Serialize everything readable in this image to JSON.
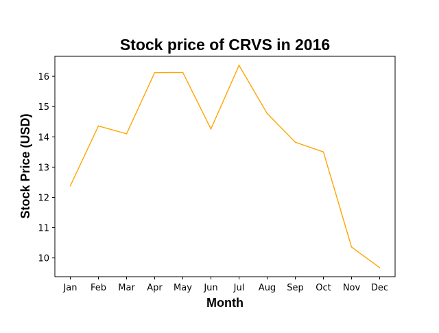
{
  "chart_data": {
    "type": "line",
    "title": "Stock price of CRVS in 2016",
    "xlabel": "Month",
    "ylabel": "Stock Price (USD)",
    "categories": [
      "Jan",
      "Feb",
      "Mar",
      "Apr",
      "May",
      "Jun",
      "Jul",
      "Aug",
      "Sep",
      "Oct",
      "Nov",
      "Dec"
    ],
    "series": [
      {
        "values": [
          12.38,
          14.36,
          14.1,
          16.12,
          16.13,
          14.26,
          16.36,
          14.77,
          13.82,
          13.5,
          10.36,
          9.68
        ],
        "color": "#FFA500"
      }
    ],
    "ylim": [
      9.38,
      16.66
    ],
    "yticks": [
      10,
      11,
      12,
      13,
      14,
      15,
      16
    ],
    "ytick_labels": [
      "10",
      "11",
      "12",
      "13",
      "14",
      "15",
      "16"
    ],
    "grid": false,
    "legend": "none"
  }
}
